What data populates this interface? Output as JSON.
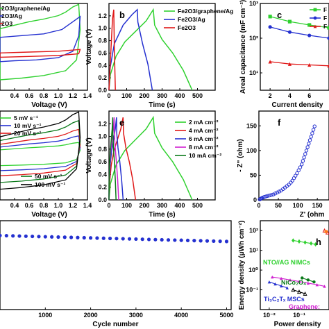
{
  "colors": {
    "green": "#2fd12f",
    "blue": "#2430d0",
    "red": "#e01818",
    "magenta": "#d020d0",
    "darkgreen": "#0a7a1a",
    "black": "#000000",
    "orange": "#ff7a1a"
  },
  "chart_data": [
    {
      "panel": "a",
      "type": "line",
      "xlabel": "Voltage (V)",
      "ylabel": "",
      "xlim": [
        0.2,
        1.4
      ],
      "ylim": [
        -1,
        1
      ],
      "xticks": [
        "0.4",
        "0.6",
        "0.8",
        "1.0",
        "1.2",
        "1.4"
      ],
      "legend": [
        "2O3/graphene/Ag",
        "2O3/Ag",
        "2O3"
      ],
      "series": [
        {
          "name": "Fe2O3/graphene/Ag",
          "color": "green",
          "closed": true,
          "points": [
            [
              0.2,
              0.42
            ],
            [
              0.4,
              0.5
            ],
            [
              0.6,
              0.58
            ],
            [
              0.8,
              0.64
            ],
            [
              1.0,
              0.72
            ],
            [
              1.1,
              0.8
            ],
            [
              1.2,
              0.92
            ],
            [
              1.28,
              0.98
            ],
            [
              1.3,
              0.4
            ],
            [
              1.25,
              -0.3
            ],
            [
              1.1,
              -0.55
            ],
            [
              0.8,
              -0.66
            ],
            [
              0.5,
              -0.72
            ],
            [
              0.2,
              -0.76
            ]
          ]
        },
        {
          "name": "Fe2O3/Ag",
          "color": "blue",
          "closed": true,
          "points": [
            [
              0.2,
              0.22
            ],
            [
              0.5,
              0.26
            ],
            [
              0.8,
              0.3
            ],
            [
              1.05,
              0.4
            ],
            [
              1.2,
              0.58
            ],
            [
              1.3,
              0.7
            ],
            [
              1.28,
              0.25
            ],
            [
              1.2,
              -0.1
            ],
            [
              1.0,
              -0.25
            ],
            [
              0.7,
              -0.3
            ],
            [
              0.4,
              -0.32
            ],
            [
              0.2,
              -0.34
            ]
          ]
        },
        {
          "name": "Fe2O3",
          "color": "red",
          "closed": true,
          "points": [
            [
              0.2,
              -0.14
            ],
            [
              0.6,
              -0.12
            ],
            [
              1.0,
              -0.1
            ],
            [
              1.3,
              -0.06
            ],
            [
              1.28,
              -0.16
            ],
            [
              1.0,
              -0.2
            ],
            [
              0.6,
              -0.22
            ],
            [
              0.2,
              -0.24
            ]
          ]
        }
      ]
    },
    {
      "panel": "b",
      "type": "line",
      "xlabel": "Time (s)",
      "ylabel": "Voltage (V)",
      "xlim": [
        0,
        600
      ],
      "ylim": [
        0,
        1.4
      ],
      "xticks": [
        "0",
        "100",
        "200",
        "300",
        "400",
        "500"
      ],
      "yticks": [
        "0.0",
        "0.2",
        "0.4",
        "0.6",
        "0.8",
        "1.0",
        "1.2"
      ],
      "legend": [
        "Fe2O3/graphene/Ag",
        "Fe2O3/Ag",
        "Fe2O3"
      ],
      "series": [
        {
          "name": "Fe2O3/graphene/Ag",
          "color": "green",
          "points": [
            [
              0,
              0
            ],
            [
              8,
              0.25
            ],
            [
              40,
              0.55
            ],
            [
              90,
              0.78
            ],
            [
              150,
              0.95
            ],
            [
              210,
              1.12
            ],
            [
              250,
              1.3
            ],
            [
              258,
              1.05
            ],
            [
              300,
              0.82
            ],
            [
              360,
              0.6
            ],
            [
              420,
              0.32
            ],
            [
              470,
              0
            ]
          ]
        },
        {
          "name": "Fe2O3/Ag",
          "color": "blue",
          "points": [
            [
              0,
              0
            ],
            [
              6,
              0.35
            ],
            [
              30,
              0.75
            ],
            [
              80,
              1.05
            ],
            [
              130,
              1.22
            ],
            [
              160,
              1.3
            ],
            [
              163,
              1.1
            ],
            [
              190,
              0.75
            ],
            [
              220,
              0.42
            ],
            [
              245,
              0
            ]
          ]
        },
        {
          "name": "Fe2O3",
          "color": "red",
          "points": [
            [
              0,
              0
            ],
            [
              10,
              0.6
            ],
            [
              20,
              1.15
            ],
            [
              27,
              1.3
            ],
            [
              30,
              0.7
            ],
            [
              36,
              0
            ]
          ]
        }
      ]
    },
    {
      "panel": "c",
      "type": "line",
      "xlabel": "Current density",
      "ylabel": "Areal capacitance (mF cm⁻²)",
      "xlim": [
        1,
        8
      ],
      "ylim_log10": [
        0.5,
        3
      ],
      "xticks": [
        "2",
        "4",
        "6"
      ],
      "yticks": [
        "10¹",
        "10²",
        "10³"
      ],
      "legend": [
        "F",
        "F",
        "F"
      ],
      "series": [
        {
          "name": "",
          "color": "green",
          "marker": "square",
          "points": [
            [
              2,
              420
            ],
            [
              4,
              300
            ],
            [
              6,
              240
            ],
            [
              8,
              200
            ]
          ]
        },
        {
          "name": "",
          "color": "blue",
          "marker": "circle",
          "points": [
            [
              2,
              210
            ],
            [
              4,
              150
            ],
            [
              6,
              120
            ],
            [
              8,
              100
            ]
          ]
        },
        {
          "name": "",
          "color": "red",
          "marker": "triangle",
          "points": [
            [
              2,
              21
            ],
            [
              4,
              18
            ],
            [
              6,
              17
            ],
            [
              8,
              16
            ]
          ]
        }
      ]
    },
    {
      "panel": "d",
      "type": "line",
      "xlabel": "Voltage (V)",
      "ylabel": "",
      "xlim": [
        0.2,
        1.4
      ],
      "ylim": [
        -1,
        1
      ],
      "xticks": [
        "0.4",
        "0.6",
        "0.8",
        "1.0",
        "1.2",
        "1.4"
      ],
      "legend": [
        "5 mV s⁻¹",
        "10 mV s⁻¹",
        "20 mV s⁻¹",
        "50 mV s⁻¹",
        "100 mV s⁻¹"
      ],
      "series": [
        {
          "name": "5 mV s⁻¹",
          "color": "green",
          "scale": 0.3
        },
        {
          "name": "10 mV s⁻¹",
          "color": "blue",
          "scale": 0.45
        },
        {
          "name": "20 mV s⁻¹",
          "color": "red",
          "scale": 0.6
        },
        {
          "name": "50 mV s⁻¹",
          "color": "darkgreen",
          "scale": 0.8
        },
        {
          "name": "100 mV s⁻¹",
          "color": "black",
          "scale": 1.0
        }
      ]
    },
    {
      "panel": "e",
      "type": "line",
      "xlabel": "Time (s)",
      "ylabel": "Voltage (V)",
      "xlim": [
        0,
        600
      ],
      "ylim": [
        0,
        1.4
      ],
      "xticks": [
        "0",
        "100",
        "200",
        "300",
        "400",
        "500"
      ],
      "yticks": [
        "0.0",
        "0.2",
        "0.4",
        "0.6",
        "0.8",
        "1.0",
        "1.2"
      ],
      "legend": [
        "2 mA cm⁻²",
        "4 mA cm⁻²",
        "6 mA cm⁻²",
        "8 mA cm⁻²",
        "10 mA cm⁻²"
      ],
      "series": [
        {
          "name": "2 mA cm⁻²",
          "color": "green",
          "tmax": 470
        },
        {
          "name": "4 mA cm⁻²",
          "color": "red",
          "tmax": 150
        },
        {
          "name": "6 mA cm⁻²",
          "color": "blue",
          "tmax": 80
        },
        {
          "name": "8 mA cm⁻²",
          "color": "magenta",
          "tmax": 55
        },
        {
          "name": "10 mA cm⁻²",
          "color": "darkgreen",
          "tmax": 40
        }
      ]
    },
    {
      "panel": "f",
      "type": "scatter",
      "xlabel": "Z' (ohm",
      "ylabel": "- Z'' (ohm)",
      "xlim": [
        0,
        180
      ],
      "ylim": [
        0,
        180
      ],
      "xticks": [
        "0",
        "50",
        "100",
        "150"
      ],
      "yticks": [
        "0",
        "50",
        "100",
        "150"
      ],
      "series": [
        {
          "name": "",
          "color": "blue",
          "points": [
            [
              2,
              1
            ],
            [
              4,
              2
            ],
            [
              6,
              3
            ],
            [
              8,
              4
            ],
            [
              11,
              5
            ],
            [
              14,
              6
            ],
            [
              18,
              7
            ],
            [
              22,
              8
            ],
            [
              27,
              9
            ],
            [
              32,
              10
            ],
            [
              37,
              11
            ],
            [
              42,
              13
            ],
            [
              47,
              15
            ],
            [
              52,
              17
            ],
            [
              57,
              19
            ],
            [
              62,
              22
            ],
            [
              67,
              25
            ],
            [
              72,
              28
            ],
            [
              77,
              31
            ],
            [
              82,
              35
            ],
            [
              86,
              39
            ],
            [
              90,
              44
            ],
            [
              94,
              49
            ],
            [
              98,
              54
            ],
            [
              102,
              60
            ],
            [
              106,
              66
            ],
            [
              110,
              72
            ],
            [
              113,
              79
            ],
            [
              116,
              86
            ],
            [
              119,
              93
            ],
            [
              122,
              100
            ],
            [
              125,
              107
            ],
            [
              128,
              114
            ],
            [
              131,
              121
            ],
            [
              134,
              128
            ],
            [
              137,
              135
            ],
            [
              140,
              142
            ],
            [
              143,
              149
            ]
          ]
        }
      ]
    },
    {
      "panel": "g",
      "type": "scatter",
      "xlabel": "Cycle number",
      "ylabel": "",
      "xlim": [
        0,
        5100
      ],
      "ylim": [
        0,
        120
      ],
      "xticks": [
        "1000",
        "2000",
        "3000",
        "4000",
        "5000"
      ],
      "series": [
        {
          "name": "",
          "color": "blue",
          "x_start": 0,
          "x_end": 5000,
          "count": 36,
          "y_start": 100,
          "y_end": 92
        }
      ]
    },
    {
      "panel": "h",
      "type": "line",
      "xlabel": "Power density",
      "ylabel": "Energy density (μWh cm⁻²)",
      "xlim_log10": [
        -2.3,
        0
      ],
      "ylim_log10": [
        -2,
        2.5
      ],
      "xticks": [
        "10⁻²",
        "10⁻¹"
      ],
      "yticks": [
        "10⁻¹",
        "10⁰",
        "10¹",
        "10²"
      ],
      "annotations": [
        {
          "text": "NTO//AG NIMCs",
          "color": "green"
        },
        {
          "text": "NiCo₂O₄",
          "color": "darkgreen"
        },
        {
          "text": "Ti₃C₂Tₓ MSCs",
          "color": "blue"
        },
        {
          "text": "Graphene:",
          "color": "magenta"
        }
      ],
      "series": [
        {
          "name": "NTO//AG NIMCs",
          "color": "green",
          "marker": "diamond",
          "points": [
            [
              -1.2,
              1.5
            ],
            [
              -1.0,
              1.45
            ],
            [
              -0.8,
              1.4
            ],
            [
              -0.6,
              1.35
            ],
            [
              -0.45,
              1.3
            ]
          ]
        },
        {
          "name": "",
          "color": "red",
          "marker": "triangle-open",
          "points": [
            [
              -0.15,
              2.0
            ],
            [
              -0.05,
              1.9
            ]
          ]
        },
        {
          "name": "",
          "color": "orange",
          "marker": "square",
          "points": [
            [
              -0.1,
              1.95
            ]
          ]
        },
        {
          "name": "NiCo₂O₄",
          "color": "darkgreen",
          "marker": "circle",
          "points": [
            [
              -0.9,
              -0.4
            ],
            [
              -0.7,
              -0.5
            ],
            [
              -0.5,
              -0.6
            ]
          ]
        },
        {
          "name": "Graphene:",
          "color": "magenta",
          "marker": "triangle",
          "points": [
            [
              -1.9,
              -0.35
            ],
            [
              -1.6,
              -0.42
            ],
            [
              -1.3,
              -0.5
            ],
            [
              -1.0,
              -0.58
            ],
            [
              -0.7,
              -0.66
            ],
            [
              -0.4,
              -0.74
            ],
            [
              -0.15,
              -0.82
            ]
          ]
        },
        {
          "name": "Ti₃C₂Tₓ MSCs",
          "color": "blue",
          "marker": "triangle",
          "points": [
            [
              -2.0,
              -0.6
            ],
            [
              -1.8,
              -0.7
            ],
            [
              -1.6,
              -0.8
            ],
            [
              -1.4,
              -0.9
            ]
          ]
        },
        {
          "name": "",
          "color": "black",
          "marker": "triangle-open",
          "points": [
            [
              -1.2,
              -1.0
            ],
            [
              -1.0,
              -1.1
            ],
            [
              -0.8,
              -1.2
            ]
          ]
        }
      ]
    }
  ]
}
